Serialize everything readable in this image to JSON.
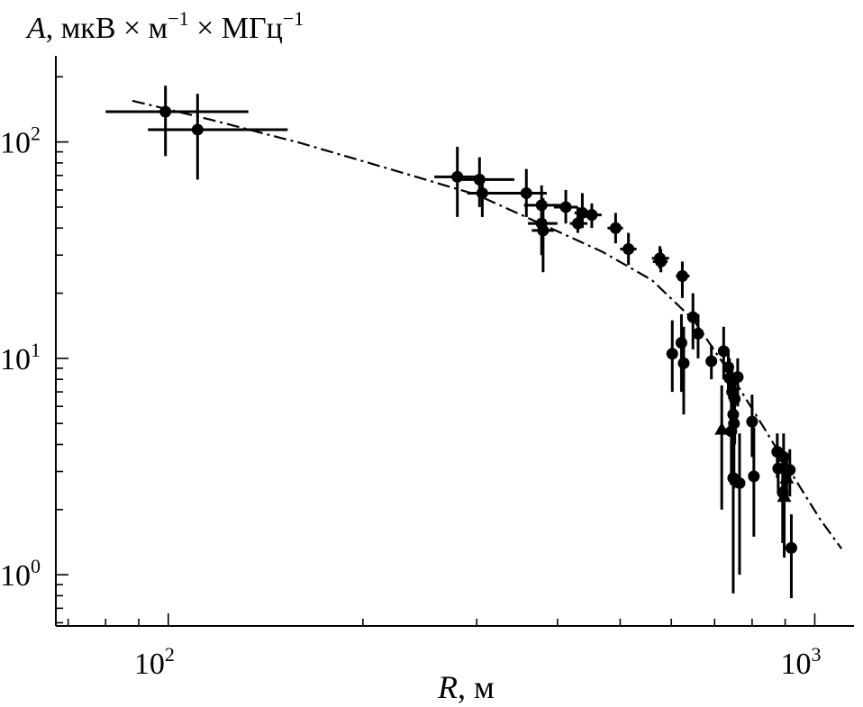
{
  "chart_data": {
    "type": "scatter",
    "title": "",
    "ylabel": {
      "symbol": "A",
      "units": ", мкВ × м",
      "exp1": "−1",
      "units2": " × МГц",
      "exp2": "−1"
    },
    "xlabel": {
      "symbol": "R",
      "units": ", м"
    },
    "xscale": "log",
    "yscale": "log",
    "xlim": [
      67,
      1150
    ],
    "ylim": [
      0.58,
      250
    ],
    "x_ticks": [
      {
        "base": "10",
        "exp": "2",
        "value": 100
      },
      {
        "base": "10",
        "exp": "3",
        "value": 1000
      }
    ],
    "y_ticks": [
      {
        "base": "10",
        "exp": "0",
        "value": 1
      },
      {
        "base": "10",
        "exp": "1",
        "value": 10
      },
      {
        "base": "10",
        "exp": "2",
        "value": 100
      }
    ],
    "grid": false,
    "color": "#000000",
    "points": [
      {
        "x": 99,
        "y": 138,
        "xerr": [
          80,
          133
        ],
        "yerr": [
          86,
          182
        ],
        "m": "circle"
      },
      {
        "x": 111,
        "y": 114,
        "xerr": [
          93,
          153
        ],
        "yerr": [
          67,
          167
        ],
        "m": "circle"
      },
      {
        "x": 280,
        "y": 69,
        "xerr": [
          258,
          300
        ],
        "yerr": [
          45,
          95
        ],
        "m": "circle"
      },
      {
        "x": 303,
        "y": 67,
        "xerr": [
          280,
          343
        ],
        "yerr": [
          50,
          85
        ],
        "m": "circle"
      },
      {
        "x": 306,
        "y": 58,
        "xerr": [
          290,
          340
        ],
        "yerr": [
          45,
          70
        ],
        "m": "circle"
      },
      {
        "x": 358,
        "y": 58,
        "xerr": [
          335,
          385
        ],
        "yerr": [
          45,
          75
        ],
        "m": "circle"
      },
      {
        "x": 378,
        "y": 51,
        "xerr": [
          355,
          405
        ],
        "yerr": [
          42,
          63
        ],
        "m": "circle"
      },
      {
        "x": 378,
        "y": 42,
        "xerr": [
          360,
          400
        ],
        "yerr": [
          30,
          52
        ],
        "m": "circle"
      },
      {
        "x": 380,
        "y": 39,
        "xerr": [
          365,
          395
        ],
        "yerr": [
          25,
          55
        ],
        "m": "circle"
      },
      {
        "x": 412,
        "y": 50,
        "xerr": [
          395,
          430
        ],
        "yerr": [
          42,
          60
        ],
        "m": "circle"
      },
      {
        "x": 430,
        "y": 42,
        "xerr": [
          418,
          445
        ],
        "yerr": [
          38,
          50
        ],
        "m": "circle"
      },
      {
        "x": 437,
        "y": 47,
        "xerr": [
          425,
          455
        ],
        "yerr": [
          40,
          58
        ],
        "m": "circle"
      },
      {
        "x": 452,
        "y": 46,
        "xerr": [
          440,
          468
        ],
        "yerr": [
          40,
          52
        ],
        "m": "circle"
      },
      {
        "x": 492,
        "y": 40,
        "xerr": [
          478,
          505
        ],
        "yerr": [
          34,
          47
        ],
        "m": "circle"
      },
      {
        "x": 515,
        "y": 32,
        "xerr": [
          500,
          530
        ],
        "yerr": [
          27,
          38
        ],
        "m": "circle"
      },
      {
        "x": 576,
        "y": 29,
        "xerr": [
          560,
          595
        ],
        "yerr": [
          26,
          33
        ],
        "m": "circle"
      },
      {
        "x": 578,
        "y": 28,
        "xerr": [
          562,
          592
        ],
        "yerr": [
          25,
          32
        ],
        "m": "circle"
      },
      {
        "x": 624,
        "y": 24,
        "xerr": [
          610,
          640
        ],
        "yerr": [
          19,
          28
        ],
        "m": "circle"
      },
      {
        "x": 648,
        "y": 15.5,
        "xerr": [
          635,
          660
        ],
        "yerr": [
          11,
          20
        ],
        "m": "circle"
      },
      {
        "x": 660,
        "y": 13,
        "xerr": [
          650,
          672
        ],
        "yerr": [
          10,
          16
        ],
        "m": "circle"
      },
      {
        "x": 602,
        "y": 10.5,
        "xerr": [
          595,
          612
        ],
        "yerr": [
          7,
          15
        ],
        "m": "circle"
      },
      {
        "x": 622,
        "y": 11.8,
        "xerr": [
          614,
          630
        ],
        "yerr": [
          7,
          16
        ],
        "m": "circle"
      },
      {
        "x": 627,
        "y": 9.5,
        "xerr": [
          618,
          636
        ],
        "yerr": [
          5.5,
          14
        ],
        "m": "circle"
      },
      {
        "x": 692,
        "y": 9.7,
        "xerr": [
          684,
          702
        ],
        "yerr": [
          8,
          11.5
        ],
        "m": "circle"
      },
      {
        "x": 723,
        "y": 10.8,
        "xerr": [
          712,
          734
        ],
        "yerr": [
          8,
          14
        ],
        "m": "circle"
      },
      {
        "x": 735,
        "y": 9.1,
        "xerr": [
          726,
          744
        ],
        "yerr": [
          7,
          11
        ],
        "m": "circle"
      },
      {
        "x": 738,
        "y": 8.1,
        "xerr": [
          729,
          747
        ],
        "yerr": [
          6.5,
          10
        ],
        "m": "circle"
      },
      {
        "x": 745,
        "y": 7.0,
        "xerr": [
          737,
          753
        ],
        "yerr": [
          5,
          9
        ],
        "m": "circle"
      },
      {
        "x": 760,
        "y": 8.2,
        "xerr": [
          751,
          770
        ],
        "yerr": [
          6,
          10
        ],
        "m": "circle"
      },
      {
        "x": 752,
        "y": 6.5,
        "xerr": [
          744,
          760
        ],
        "yerr": [
          4,
          8.5
        ],
        "m": "circle"
      },
      {
        "x": 748,
        "y": 5.5,
        "xerr": [
          740,
          756
        ],
        "yerr": [
          3,
          8
        ],
        "m": "circle"
      },
      {
        "x": 750,
        "y": 5.0,
        "xerr": [
          742,
          758
        ],
        "yerr": [
          2.5,
          7.5
        ],
        "m": "circle"
      },
      {
        "x": 718,
        "y": 4.7,
        "xerr": [
          708,
          728
        ],
        "yerr": [
          2,
          7.5
        ],
        "m": "triangle"
      },
      {
        "x": 743,
        "y": 4.6,
        "xerr": [
          735,
          751
        ],
        "yerr": [
          2.6,
          6.5
        ],
        "m": "circle"
      },
      {
        "x": 748,
        "y": 2.8,
        "xerr": [
          740,
          756
        ],
        "yerr": [
          0.82,
          4.8
        ],
        "m": "circle"
      },
      {
        "x": 765,
        "y": 2.65,
        "xerr": [
          757,
          773
        ],
        "yerr": [
          1.0,
          4.5
        ],
        "m": "circle"
      },
      {
        "x": 800,
        "y": 5.1,
        "xerr": [
          790,
          810
        ],
        "yerr": [
          3.5,
          6.8
        ],
        "m": "circle"
      },
      {
        "x": 805,
        "y": 2.85,
        "xerr": [
          795,
          815
        ],
        "yerr": [
          1.5,
          4.8
        ],
        "m": "circle"
      },
      {
        "x": 875,
        "y": 3.7,
        "xerr": [
          865,
          885
        ],
        "yerr": [
          2.8,
          4.5
        ],
        "m": "circle"
      },
      {
        "x": 895,
        "y": 3.5,
        "xerr": [
          885,
          905
        ],
        "yerr": [
          2.5,
          4.5
        ],
        "m": "circle"
      },
      {
        "x": 878,
        "y": 3.1,
        "xerr": [
          868,
          888
        ],
        "yerr": [
          2.4,
          3.8
        ],
        "m": "circle"
      },
      {
        "x": 915,
        "y": 3.05,
        "xerr": [
          905,
          925
        ],
        "yerr": [
          2.3,
          3.8
        ],
        "m": "circle"
      },
      {
        "x": 892,
        "y": 2.4,
        "xerr": [
          882,
          902
        ],
        "yerr": [
          1.4,
          3.6
        ],
        "m": "circle"
      },
      {
        "x": 897,
        "y": 2.3,
        "xerr": [
          887,
          907
        ],
        "yerr": [
          1.2,
          3.4
        ],
        "m": "triangle"
      },
      {
        "x": 905,
        "y": 2.8,
        "xerr": [
          895,
          915
        ],
        "yerr": [
          2.2,
          3.4
        ],
        "m": "triangle"
      },
      {
        "x": 920,
        "y": 1.33,
        "xerr": [
          910,
          930
        ],
        "yerr": [
          0.78,
          1.9
        ],
        "m": "circle"
      }
    ],
    "fit_curve": {
      "style": "dash-dot",
      "x": [
        88,
        116,
        160,
        220,
        300,
        390,
        470,
        560,
        650,
        740,
        830,
        930,
        1020,
        1100
      ],
      "y": [
        155,
        127,
        99,
        75,
        57,
        40,
        31,
        23,
        15,
        8.5,
        4.9,
        2.8,
        1.8,
        1.32
      ]
    }
  }
}
